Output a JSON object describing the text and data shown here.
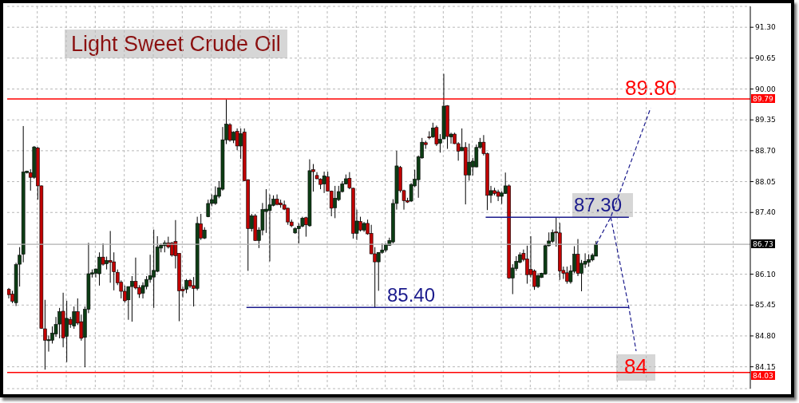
{
  "chart_data": {
    "type": "candlestick",
    "title": "Light Sweet Crude Oil",
    "categories": [
      null,
      null,
      null,
      null,
      null,
      null,
      null,
      null,
      null,
      null,
      null,
      null,
      null,
      null,
      null,
      null,
      null,
      null,
      null,
      null,
      null,
      null,
      null,
      null,
      null,
      null,
      null,
      null,
      null,
      null,
      null,
      null,
      null,
      null,
      null,
      null,
      null,
      null,
      null,
      null,
      null,
      null,
      null,
      null,
      null,
      null,
      null,
      null,
      null,
      null,
      null,
      null,
      null,
      null,
      null,
      null,
      null,
      null,
      null,
      null,
      null,
      null,
      null,
      null,
      null,
      null,
      null,
      null,
      null,
      null,
      null,
      null,
      null,
      null,
      null,
      null,
      null,
      null,
      null,
      null,
      null,
      null,
      null,
      null,
      null,
      null,
      null,
      null,
      null,
      null,
      null,
      null,
      null,
      null,
      null,
      null,
      null,
      null,
      null,
      null,
      null,
      null,
      null,
      null,
      null,
      null,
      null,
      null,
      null,
      null,
      null,
      null,
      null,
      null,
      null,
      null,
      null,
      null,
      null,
      null,
      null,
      null,
      null,
      null,
      null,
      null,
      null,
      null,
      null,
      null,
      null,
      null,
      null,
      null,
      null,
      null,
      null,
      null,
      null,
      null,
      null,
      null,
      null,
      null,
      null,
      null,
      null,
      null,
      null,
      null,
      null,
      null,
      null,
      null,
      null,
      null,
      null,
      null,
      null,
      null,
      null,
      null,
      null,
      null,
      null,
      null,
      null,
      null,
      null,
      null,
      null,
      null,
      null,
      null,
      null,
      null,
      null,
      null,
      null,
      null,
      null,
      null,
      null,
      null,
      null,
      null,
      null,
      null,
      null,
      null,
      null,
      null,
      null,
      null,
      null,
      null,
      null,
      null,
      null,
      null,
      null,
      null,
      null,
      null,
      null
    ],
    "ohlc": [
      [
        85.78,
        85.81,
        85.59,
        85.67
      ],
      [
        85.68,
        85.75,
        85.49,
        85.53
      ],
      [
        85.5,
        86.34,
        85.43,
        86.3
      ],
      [
        86.31,
        86.67,
        85.84,
        86.5
      ],
      [
        86.52,
        89.22,
        86.35,
        88.25
      ],
      [
        88.24,
        88.28,
        88.22,
        88.27
      ],
      [
        88.24,
        88.31,
        87.86,
        88.14
      ],
      [
        88.14,
        88.8,
        88.11,
        88.78
      ],
      [
        88.76,
        88.78,
        87.67,
        87.96
      ],
      [
        87.96,
        87.97,
        84.95,
        84.96
      ],
      [
        84.95,
        85.56,
        84.09,
        84.71
      ],
      [
        84.7,
        84.81,
        84.47,
        84.72
      ],
      [
        84.71,
        85.0,
        84.64,
        84.86
      ],
      [
        84.84,
        85.2,
        84.78,
        85.04
      ],
      [
        85.05,
        85.39,
        84.75,
        85.31
      ],
      [
        85.32,
        85.71,
        84.56,
        84.76
      ],
      [
        84.79,
        85.54,
        84.25,
        85.17
      ],
      [
        85.15,
        85.2,
        84.97,
        85.04
      ],
      [
        85.01,
        85.42,
        84.95,
        85.31
      ],
      [
        85.31,
        85.59,
        85.03,
        85.07
      ],
      [
        85.1,
        85.25,
        84.7,
        84.75
      ],
      [
        84.77,
        85.42,
        84.14,
        85.36
      ],
      [
        85.36,
        86.76,
        85.28,
        86.11
      ],
      [
        86.1,
        86.2,
        86.03,
        86.13
      ],
      [
        86.12,
        86.22,
        86.03,
        86.21
      ],
      [
        86.11,
        86.56,
        85.86,
        86.46
      ],
      [
        86.46,
        86.75,
        86.28,
        86.31
      ],
      [
        86.32,
        86.47,
        86.2,
        86.39
      ],
      [
        86.39,
        87.01,
        85.92,
        86.35
      ],
      [
        86.36,
        86.56,
        85.76,
        86.15
      ],
      [
        86.14,
        86.2,
        85.87,
        85.92
      ],
      [
        85.93,
        85.97,
        85.59,
        85.74
      ],
      [
        85.74,
        85.86,
        85.5,
        85.54
      ],
      [
        85.56,
        85.84,
        85.14,
        85.84
      ],
      [
        85.84,
        86.06,
        85.1,
        85.95
      ],
      [
        85.95,
        86.45,
        85.78,
        85.81
      ],
      [
        85.82,
        85.87,
        85.6,
        85.68
      ],
      [
        85.7,
        85.93,
        85.59,
        85.86
      ],
      [
        85.84,
        86.06,
        85.78,
        85.99
      ],
      [
        85.99,
        86.51,
        85.92,
        86.07
      ],
      [
        86.04,
        87.04,
        85.39,
        86.18
      ],
      [
        86.16,
        86.9,
        86.14,
        86.67
      ],
      [
        86.65,
        86.75,
        86.56,
        86.71
      ],
      [
        86.7,
        86.81,
        86.56,
        86.76
      ],
      [
        86.76,
        86.89,
        86.64,
        86.67
      ],
      [
        86.76,
        86.78,
        86.47,
        86.5
      ],
      [
        86.79,
        87.24,
        86.22,
        86.49
      ],
      [
        86.54,
        86.54,
        85.11,
        85.75
      ],
      [
        85.78,
        85.84,
        85.61,
        85.75
      ],
      [
        85.78,
        86.0,
        85.7,
        85.97
      ],
      [
        85.97,
        86.0,
        85.81,
        85.85
      ],
      [
        85.86,
        86.04,
        85.42,
        85.8
      ],
      [
        85.8,
        87.31,
        85.76,
        87.17
      ],
      [
        87.16,
        87.37,
        86.82,
        86.86
      ],
      [
        86.86,
        87.09,
        86.84,
        87.03
      ],
      [
        87.31,
        87.67,
        87.3,
        87.59
      ],
      [
        87.59,
        87.78,
        87.53,
        87.67
      ],
      [
        87.59,
        87.95,
        87.56,
        87.76
      ],
      [
        87.74,
        88.06,
        87.7,
        87.92
      ],
      [
        87.89,
        89.2,
        87.86,
        88.93
      ],
      [
        88.93,
        89.78,
        88.84,
        89.26
      ],
      [
        89.25,
        89.28,
        88.89,
        88.92
      ],
      [
        88.92,
        89.11,
        88.86,
        89.09
      ],
      [
        89.11,
        89.17,
        88.71,
        88.8
      ],
      [
        88.8,
        89.17,
        88.53,
        89.06
      ],
      [
        89.09,
        89.17,
        88.06,
        88.07
      ],
      [
        88.09,
        88.1,
        86.17,
        87.06
      ],
      [
        87.06,
        87.37,
        87.0,
        87.33
      ],
      [
        87.33,
        87.37,
        86.8,
        86.81
      ],
      [
        86.81,
        87.09,
        86.65,
        87.03
      ],
      [
        87.03,
        87.6,
        86.92,
        87.46
      ],
      [
        87.42,
        87.89,
        86.97,
        87.47
      ],
      [
        87.44,
        87.78,
        86.37,
        87.56
      ],
      [
        87.55,
        87.76,
        87.53,
        87.68
      ],
      [
        87.68,
        87.78,
        87.55,
        87.57
      ],
      [
        87.6,
        87.67,
        87.5,
        87.56
      ],
      [
        87.56,
        87.65,
        87.45,
        87.47
      ],
      [
        87.49,
        87.5,
        87.14,
        87.2
      ],
      [
        87.2,
        87.25,
        87.09,
        87.12
      ],
      [
        86.97,
        87.09,
        86.95,
        87.06
      ],
      [
        87.06,
        87.17,
        86.75,
        87.11
      ],
      [
        87.11,
        87.31,
        87.09,
        87.28
      ],
      [
        87.29,
        87.31,
        86.89,
        87.14
      ],
      [
        87.12,
        88.52,
        87.1,
        88.28
      ],
      [
        88.3,
        88.42,
        87.84,
        88.26
      ],
      [
        88.18,
        88.25,
        88.1,
        88.11
      ],
      [
        88.1,
        88.12,
        87.89,
        87.99
      ],
      [
        88.0,
        88.26,
        87.81,
        88.17
      ],
      [
        88.15,
        88.26,
        87.84,
        87.85
      ],
      [
        87.85,
        87.86,
        87.32,
        87.49
      ],
      [
        87.5,
        87.96,
        87.28,
        87.7
      ],
      [
        87.67,
        87.96,
        87.64,
        87.84
      ],
      [
        87.84,
        88.06,
        87.82,
        88.0
      ],
      [
        88.0,
        88.2,
        87.99,
        88.11
      ],
      [
        88.12,
        88.25,
        87.89,
        87.92
      ],
      [
        87.91,
        87.92,
        86.85,
        86.96
      ],
      [
        86.96,
        87.46,
        86.82,
        87.22
      ],
      [
        87.21,
        87.31,
        87.0,
        87.03
      ],
      [
        87.03,
        87.2,
        86.99,
        87.17
      ],
      [
        87.17,
        87.25,
        86.93,
        86.95
      ],
      [
        86.96,
        87.14,
        86.52,
        86.53
      ],
      [
        86.53,
        86.67,
        85.39,
        86.36
      ],
      [
        86.36,
        86.56,
        85.75,
        86.56
      ],
      [
        86.56,
        86.75,
        86.53,
        86.61
      ],
      [
        86.61,
        86.75,
        86.57,
        86.72
      ],
      [
        86.71,
        86.87,
        86.7,
        86.81
      ],
      [
        86.78,
        87.68,
        86.75,
        87.59
      ],
      [
        87.59,
        88.7,
        87.46,
        88.38
      ],
      [
        88.35,
        88.38,
        87.82,
        87.86
      ],
      [
        87.86,
        87.88,
        87.46,
        87.65
      ],
      [
        87.65,
        87.71,
        87.6,
        87.62
      ],
      [
        87.64,
        88.02,
        87.62,
        87.99
      ],
      [
        87.96,
        88.3,
        87.93,
        88.1
      ],
      [
        88.09,
        88.6,
        87.71,
        88.57
      ],
      [
        88.55,
        88.97,
        88.53,
        88.88
      ],
      [
        88.87,
        88.91,
        88.74,
        88.83
      ],
      [
        88.99,
        89.11,
        88.94,
        88.98
      ],
      [
        88.99,
        89.29,
        88.97,
        89.18
      ],
      [
        89.19,
        89.23,
        88.8,
        88.84
      ],
      [
        88.86,
        89.05,
        88.66,
        88.94
      ],
      [
        88.95,
        90.32,
        88.94,
        89.64
      ],
      [
        89.65,
        89.66,
        88.74,
        89.0
      ],
      [
        88.99,
        89.08,
        88.85,
        89.05
      ],
      [
        89.05,
        89.08,
        88.84,
        88.85
      ],
      [
        88.85,
        88.88,
        88.49,
        88.69
      ],
      [
        88.7,
        89.17,
        88.69,
        88.77
      ],
      [
        88.77,
        88.88,
        87.57,
        88.19
      ],
      [
        88.19,
        88.85,
        88.07,
        88.46
      ],
      [
        88.36,
        88.55,
        88.18,
        88.48
      ],
      [
        88.36,
        88.83,
        88.35,
        88.77
      ],
      [
        88.77,
        88.97,
        88.74,
        88.88
      ],
      [
        88.88,
        89.03,
        88.6,
        88.64
      ],
      [
        88.64,
        88.66,
        87.45,
        87.76
      ],
      [
        87.76,
        87.96,
        87.6,
        87.86
      ],
      [
        87.86,
        87.92,
        87.76,
        87.8
      ],
      [
        87.83,
        87.88,
        87.64,
        87.74
      ],
      [
        87.74,
        87.85,
        87.58,
        87.81
      ],
      [
        87.8,
        88.24,
        87.79,
        87.96
      ],
      [
        87.96,
        87.99,
        86.0,
        86.02
      ],
      [
        86.02,
        86.31,
        85.68,
        86.23
      ],
      [
        86.22,
        86.48,
        86.17,
        86.37
      ],
      [
        86.35,
        86.56,
        86.33,
        86.51
      ],
      [
        86.54,
        86.62,
        86.37,
        86.41
      ],
      [
        86.42,
        86.7,
        85.9,
        86.09
      ],
      [
        86.2,
        86.9,
        86.03,
        86.09
      ],
      [
        86.17,
        86.2,
        85.77,
        85.84
      ],
      [
        85.84,
        86.12,
        85.81,
        86.07
      ],
      [
        86.03,
        86.13,
        86.02,
        86.12
      ],
      [
        86.1,
        86.73,
        86.09,
        86.7
      ],
      [
        86.7,
        86.98,
        86.68,
        86.8
      ],
      [
        86.79,
        87.04,
        86.76,
        86.98
      ],
      [
        86.99,
        87.3,
        86.68,
        86.97
      ],
      [
        86.97,
        87.18,
        85.98,
        86.17
      ],
      [
        86.18,
        86.26,
        86.0,
        86.12
      ],
      [
        86.13,
        86.26,
        85.9,
        85.95
      ],
      [
        85.94,
        86.29,
        85.9,
        86.17
      ],
      [
        86.16,
        86.69,
        86.12,
        86.52
      ],
      [
        86.52,
        86.84,
        86.06,
        86.12
      ],
      [
        86.12,
        86.4,
        85.74,
        86.33
      ],
      [
        86.31,
        86.54,
        86.23,
        86.37
      ],
      [
        86.35,
        86.52,
        86.26,
        86.41
      ],
      [
        86.4,
        86.54,
        86.37,
        86.5
      ],
      [
        86.48,
        86.8,
        86.48,
        86.73
      ],
      null,
      null,
      null,
      null,
      null,
      null,
      null,
      null,
      null,
      null,
      null,
      null,
      null,
      null,
      null,
      null,
      null,
      null,
      null,
      null,
      null,
      null,
      null,
      null,
      null,
      null,
      null,
      null,
      null,
      null,
      null,
      null,
      null,
      null,
      null,
      null,
      null,
      null,
      null,
      null,
      null,
      null
    ],
    "series": [
      {
        "type": "line",
        "color": "#1a1a8c",
        "values": [
          null,
          null,
          null,
          null,
          null,
          null,
          null,
          null,
          null,
          null,
          null,
          null,
          null,
          null,
          null,
          null,
          null,
          null,
          null,
          null,
          null,
          null,
          null,
          null,
          null,
          null,
          null,
          null,
          null,
          null,
          null,
          null,
          null,
          null,
          null,
          null,
          null,
          null,
          null,
          null,
          null,
          null,
          null,
          null,
          null,
          null,
          null,
          null,
          null,
          null,
          null,
          null,
          null,
          null,
          null,
          null,
          null,
          null,
          null,
          null,
          null,
          null,
          null,
          null,
          null,
          null,
          null,
          null,
          null,
          null,
          null,
          null,
          null,
          null,
          null,
          null,
          null,
          null,
          null,
          null,
          null,
          null,
          null,
          null,
          null,
          null,
          null,
          null,
          null,
          null,
          null,
          null,
          null,
          null,
          null,
          null,
          null,
          null,
          null,
          null,
          null,
          null,
          null,
          null,
          null,
          null,
          null,
          null,
          null,
          null,
          null,
          null,
          null,
          null,
          null,
          null,
          null,
          null,
          null,
          null,
          null,
          null,
          null,
          null,
          null,
          null,
          null,
          null,
          null,
          null,
          null,
          null,
          null,
          null,
          null,
          null,
          null,
          null,
          null,
          null,
          null,
          null,
          null,
          null,
          null,
          null,
          null,
          null,
          null,
          null,
          null,
          null,
          null,
          null,
          null,
          null,
          null,
          null,
          null,
          null,
          null,
          null,
          86.73,
          null,
          null,
          null,
          87.3,
          null,
          null,
          null,
          null,
          null,
          null,
          null,
          null,
          null,
          null,
          89.6,
          null,
          null,
          null,
          null,
          null,
          null,
          null,
          null,
          null,
          null,
          null,
          null,
          null,
          null,
          null,
          null,
          null,
          null,
          null,
          null,
          null,
          null,
          null,
          null,
          null,
          null,
          null
        ]
      },
      {
        "type": "line",
        "color": "#1a1a8c",
        "values": [
          null,
          null,
          null,
          null,
          null,
          null,
          null,
          null,
          null,
          null,
          null,
          null,
          null,
          null,
          null,
          null,
          null,
          null,
          null,
          null,
          null,
          null,
          null,
          null,
          null,
          null,
          null,
          null,
          null,
          null,
          null,
          null,
          null,
          null,
          null,
          null,
          null,
          null,
          null,
          null,
          null,
          null,
          null,
          null,
          null,
          null,
          null,
          null,
          null,
          null,
          null,
          null,
          null,
          null,
          null,
          null,
          null,
          null,
          null,
          null,
          null,
          null,
          null,
          null,
          null,
          null,
          null,
          null,
          null,
          null,
          null,
          null,
          null,
          null,
          null,
          null,
          null,
          null,
          null,
          null,
          null,
          null,
          null,
          null,
          null,
          null,
          null,
          null,
          null,
          null,
          null,
          null,
          null,
          null,
          null,
          null,
          null,
          null,
          null,
          null,
          null,
          null,
          null,
          null,
          null,
          null,
          null,
          null,
          null,
          null,
          null,
          null,
          null,
          null,
          null,
          null,
          null,
          null,
          null,
          null,
          null,
          null,
          null,
          null,
          null,
          null,
          null,
          null,
          null,
          null,
          null,
          null,
          null,
          null,
          null,
          null,
          null,
          null,
          null,
          null,
          null,
          null,
          null,
          null,
          null,
          null,
          null,
          null,
          null,
          null,
          null,
          null,
          null,
          null,
          null,
          null,
          null,
          null,
          null,
          null,
          null,
          null,
          null,
          null,
          null,
          null,
          87.3,
          null,
          null,
          null,
          null,
          85.4,
          null,
          84.48,
          null,
          null,
          null,
          null,
          null,
          null,
          null,
          null,
          null,
          null,
          null,
          null,
          null,
          null,
          null,
          null,
          null,
          null,
          null,
          null,
          null,
          null,
          null,
          null,
          null,
          null,
          null,
          null,
          null,
          null,
          null
        ]
      }
    ],
    "line_style": "dashed",
    "ylim": [
      83.69,
      91.74
    ],
    "yticks": [
      {
        "value": 84.15,
        "label": "84.15"
      },
      {
        "value": 84.8,
        "label": "84.80"
      },
      {
        "value": 85.45,
        "label": "85.45"
      },
      {
        "value": 86.1,
        "label": "86.10"
      },
      {
        "value": 87.4,
        "label": "87.40"
      },
      {
        "value": 88.05,
        "label": "88.05"
      },
      {
        "value": 88.7,
        "label": "88.70"
      },
      {
        "value": 89.35,
        "label": "89.35"
      },
      {
        "value": 90,
        "label": "90.00"
      },
      {
        "value": 90.65,
        "label": "90.65"
      },
      {
        "value": 91.3,
        "label": "91.30"
      }
    ],
    "grid": true,
    "ref_lines": [
      {
        "axis": "y",
        "value": 89.79,
        "label": "89.79",
        "color": "#ff0000"
      },
      {
        "axis": "y",
        "value": 84.03,
        "label": "84.03",
        "color": "#ff0000"
      },
      {
        "axis": "y",
        "value": 86.73,
        "label": "86.73",
        "color": "#b0b0b0"
      },
      {
        "axis": "y",
        "value": 87.3,
        "label": "87.30",
        "color": "#1a1a8c"
      },
      {
        "axis": "y",
        "value": 85.4,
        "label": "85.40",
        "color": "#1a1a8c"
      }
    ],
    "annotations": [
      {
        "text": "89.80",
        "y": 89.8
      },
      {
        "text": "84",
        "y": 84
      }
    ]
  }
}
